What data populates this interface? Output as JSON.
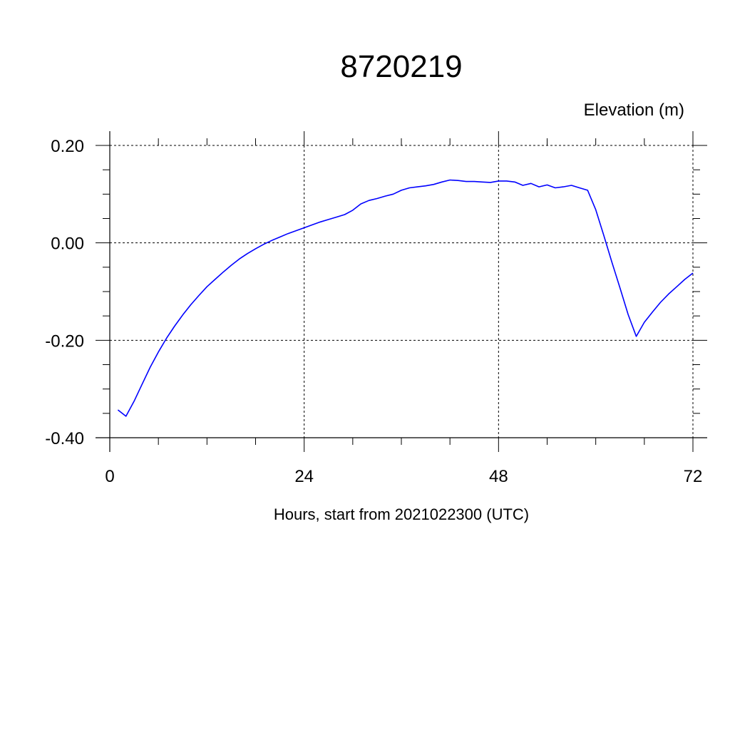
{
  "chart_data": {
    "type": "line",
    "title": "8720219",
    "ylabel": "Elevation (m)",
    "xlabel": "Hours, start from 2021022300 (UTC)",
    "xlim": [
      0,
      72
    ],
    "ylim": [
      -0.4,
      0.2
    ],
    "x_ticks": [
      0,
      24,
      48,
      72
    ],
    "x_tick_labels": [
      "0",
      "24",
      "48",
      "72"
    ],
    "y_ticks": [
      -0.4,
      -0.2,
      0.0,
      0.2
    ],
    "y_tick_labels": [
      "-0.40",
      "-0.20",
      "0.00",
      "0.20"
    ],
    "grid": true,
    "series": [
      {
        "color": "#0000ff",
        "x": [
          1,
          2,
          3,
          4,
          5,
          6,
          7,
          8,
          9,
          10,
          11,
          12,
          13,
          14,
          15,
          16,
          17,
          18,
          19,
          20,
          21,
          22,
          23,
          24,
          25,
          26,
          27,
          28,
          29,
          30,
          31,
          32,
          33,
          34,
          35,
          36,
          37,
          38,
          39,
          40,
          41,
          42,
          43,
          44,
          45,
          46,
          47,
          48,
          49,
          50,
          51,
          52,
          53,
          54,
          55,
          56,
          57,
          58,
          59,
          60,
          61,
          62,
          63,
          64,
          65,
          66,
          67,
          68,
          69,
          70,
          71,
          72
        ],
        "y": [
          -0.343,
          -0.356,
          -0.325,
          -0.29,
          -0.255,
          -0.224,
          -0.196,
          -0.171,
          -0.148,
          -0.127,
          -0.108,
          -0.09,
          -0.075,
          -0.06,
          -0.046,
          -0.033,
          -0.022,
          -0.012,
          -0.003,
          0.005,
          0.012,
          0.019,
          0.025,
          0.031,
          0.037,
          0.043,
          0.048,
          0.053,
          0.058,
          0.067,
          0.08,
          0.087,
          0.091,
          0.096,
          0.1,
          0.108,
          0.113,
          0.115,
          0.117,
          0.12,
          0.125,
          0.129,
          0.128,
          0.126,
          0.126,
          0.125,
          0.124,
          0.127,
          0.127,
          0.125,
          0.118,
          0.122,
          0.115,
          0.119,
          0.113,
          0.115,
          0.118,
          0.113,
          0.108,
          0.068,
          0.015,
          -0.04,
          -0.093,
          -0.147,
          -0.192,
          -0.163,
          -0.142,
          -0.122,
          -0.105,
          -0.09,
          -0.075,
          -0.062
        ]
      }
    ]
  }
}
